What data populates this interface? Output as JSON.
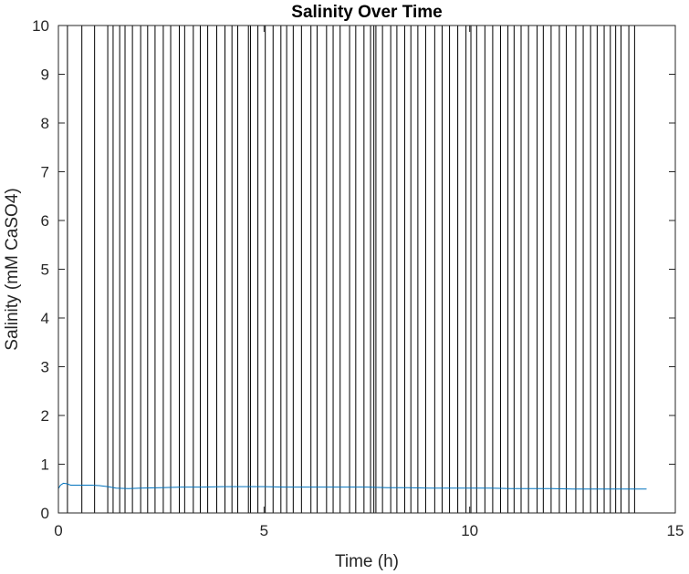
{
  "chart_data": {
    "type": "line",
    "title": "Salinity Over Time",
    "xlabel": "Time (h)",
    "ylabel": "Salinity (mM CaSO4)",
    "xlim": [
      0,
      15
    ],
    "ylim": [
      0,
      10
    ],
    "xticks": [
      0,
      5,
      10,
      15
    ],
    "yticks": [
      0,
      1,
      2,
      3,
      4,
      5,
      6,
      7,
      8,
      9,
      10
    ],
    "grid": false,
    "box": true,
    "colors": {
      "series": "#0072BD",
      "event_lines": "#000000",
      "axes": "#262626"
    },
    "series": [
      {
        "x": [
          0,
          0.05,
          0.12,
          0.2,
          0.3,
          0.5,
          0.8,
          1.0,
          1.2,
          1.4,
          1.7,
          2.0,
          2.5,
          3.0,
          3.5,
          4.0,
          4.5,
          5.0,
          5.5,
          6.0,
          6.5,
          7.0,
          7.5,
          8.0,
          8.5,
          9.0,
          9.5,
          10.0,
          10.5,
          11.0,
          11.5,
          12.0,
          12.5,
          13.0,
          13.5,
          14.0,
          14.3
        ],
        "values": [
          0.5,
          0.57,
          0.61,
          0.6,
          0.57,
          0.57,
          0.57,
          0.56,
          0.54,
          0.51,
          0.5,
          0.51,
          0.52,
          0.53,
          0.53,
          0.54,
          0.54,
          0.54,
          0.53,
          0.53,
          0.53,
          0.53,
          0.53,
          0.52,
          0.52,
          0.51,
          0.51,
          0.51,
          0.51,
          0.5,
          0.5,
          0.5,
          0.49,
          0.49,
          0.49,
          0.49,
          0.49
        ]
      }
    ],
    "event_lines_x": [
      0.22,
      0.57,
      0.88,
      1.2,
      1.33,
      1.49,
      1.62,
      1.8,
      2.0,
      2.17,
      2.35,
      2.55,
      2.73,
      2.94,
      3.07,
      3.28,
      3.45,
      3.63,
      3.85,
      4.05,
      4.22,
      4.36,
      4.62,
      4.67,
      4.85,
      5.03,
      5.22,
      5.41,
      5.55,
      5.71,
      5.91,
      6.14,
      6.29,
      6.52,
      6.68,
      6.85,
      7.08,
      7.23,
      7.43,
      7.59,
      7.67,
      7.72,
      7.88,
      8.08,
      8.23,
      8.42,
      8.57,
      8.74,
      8.93,
      9.15,
      9.33,
      9.51,
      9.71,
      9.91,
      10.03,
      10.17,
      10.37,
      10.56,
      10.75,
      10.93,
      11.08,
      11.25,
      11.43,
      11.64,
      11.79,
      11.98,
      12.18,
      12.35,
      12.58,
      12.76,
      12.94,
      13.1,
      13.27,
      13.42,
      13.55,
      13.68,
      13.87,
      14.01
    ]
  }
}
